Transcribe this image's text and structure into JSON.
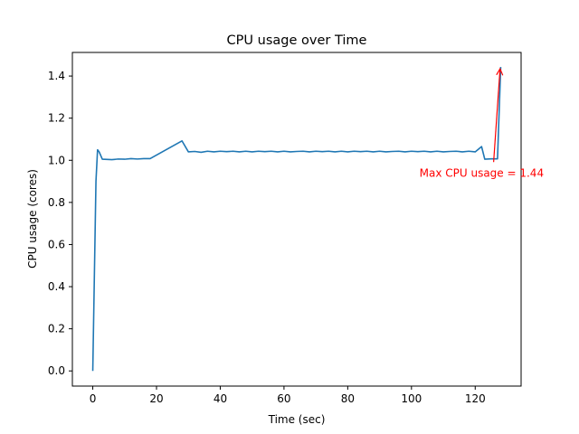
{
  "chart_data": {
    "type": "line",
    "title": "CPU usage over Time",
    "xlabel": "Time (sec)",
    "ylabel": "CPU usage (cores)",
    "xlim": [
      -6.4,
      134.4
    ],
    "ylim": [
      -0.072,
      1.512
    ],
    "xticks": [
      0,
      20,
      40,
      60,
      80,
      100,
      120
    ],
    "yticks": [
      0.0,
      0.2,
      0.4,
      0.6,
      0.8,
      1.0,
      1.2,
      1.4
    ],
    "grid": false,
    "line_color": "#1f77b4",
    "series": [
      {
        "x": [
          0,
          1,
          1.5,
          2,
          3,
          6,
          8,
          10,
          12,
          14,
          16,
          18,
          28,
          30,
          32,
          34,
          36,
          38,
          40,
          42,
          44,
          46,
          48,
          50,
          52,
          54,
          56,
          58,
          60,
          62,
          64,
          66,
          68,
          70,
          72,
          74,
          76,
          78,
          80,
          82,
          84,
          86,
          88,
          90,
          92,
          94,
          96,
          98,
          100,
          102,
          104,
          106,
          108,
          110,
          112,
          114,
          116,
          118,
          120,
          122,
          123,
          125,
          127,
          128
        ],
        "y": [
          0.0,
          0.9,
          1.05,
          1.04,
          1.005,
          1.003,
          1.006,
          1.005,
          1.008,
          1.006,
          1.008,
          1.008,
          1.092,
          1.04,
          1.042,
          1.038,
          1.043,
          1.04,
          1.043,
          1.041,
          1.043,
          1.04,
          1.043,
          1.04,
          1.043,
          1.041,
          1.043,
          1.04,
          1.043,
          1.04,
          1.042,
          1.043,
          1.04,
          1.043,
          1.041,
          1.043,
          1.04,
          1.043,
          1.04,
          1.043,
          1.041,
          1.043,
          1.04,
          1.043,
          1.04,
          1.042,
          1.043,
          1.04,
          1.043,
          1.041,
          1.043,
          1.04,
          1.043,
          1.04,
          1.042,
          1.043,
          1.04,
          1.043,
          1.04,
          1.065,
          1.005,
          1.007,
          1.007,
          1.443
        ]
      }
    ],
    "annotation": {
      "text": "Max CPU usage = 1.44",
      "color": "#ff0000",
      "point": [
        127.8,
        1.443
      ],
      "text_at": [
        102.5,
        0.94
      ]
    }
  }
}
